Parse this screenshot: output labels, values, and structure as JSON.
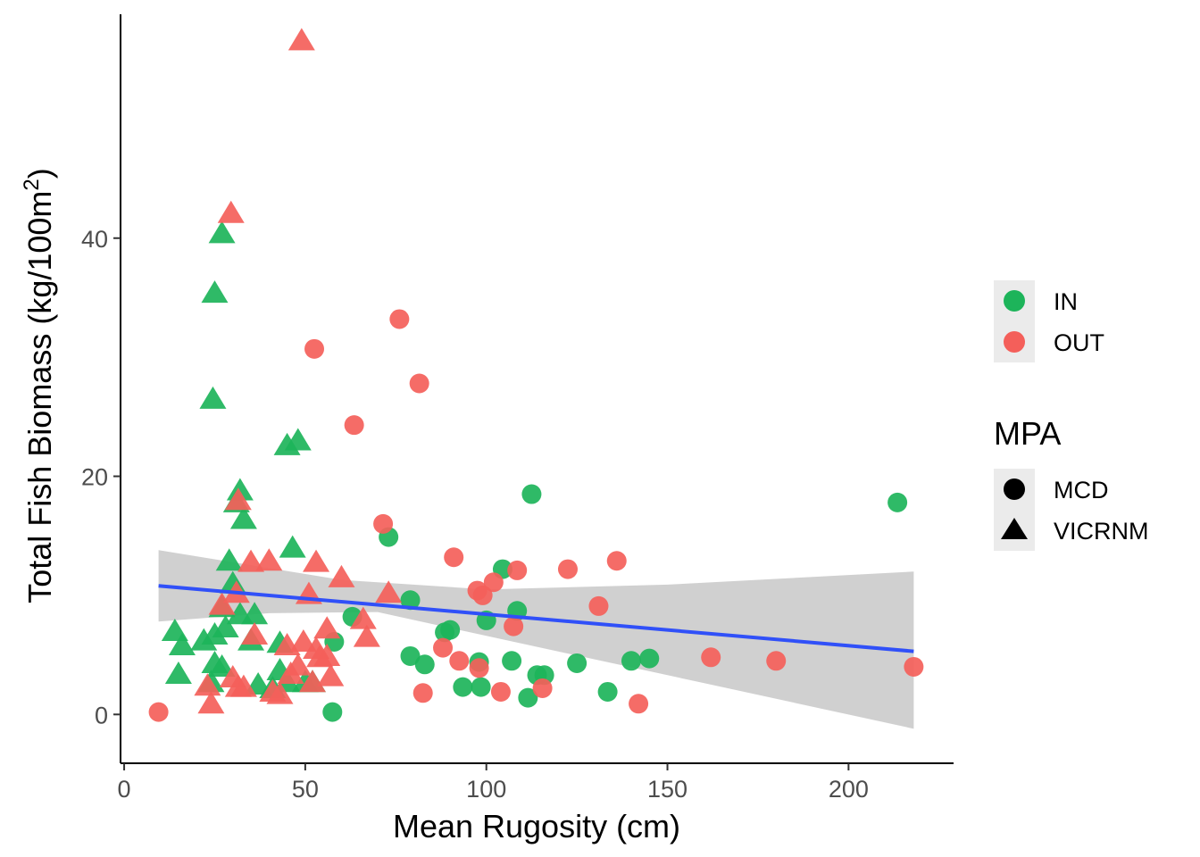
{
  "chart_data": {
    "type": "scatter",
    "xlabel": "Mean Rugosity (cm)",
    "ylabel_main": "Total Fish Biomass (kg/100m",
    "ylabel_sup": "2",
    "ylabel_end": ")",
    "xlim": [
      -1,
      229
    ],
    "ylim": [
      -4.1,
      58.8
    ],
    "x_ticks": [
      0,
      50,
      100,
      150,
      200
    ],
    "y_ticks": [
      0,
      20,
      40
    ],
    "grid": false,
    "colors": {
      "IN": "#1db45a",
      "OUT": "#f45f5a",
      "fit_line": "#3050f8",
      "ribbon": "#bebebe"
    },
    "legend_colour": {
      "placement": "right",
      "entries": [
        {
          "label": "IN",
          "key": "IN"
        },
        {
          "label": "OUT",
          "key": "OUT"
        }
      ]
    },
    "legend_shape": {
      "title": "MPA",
      "entries": [
        {
          "label": "MCD",
          "shape": "circle"
        },
        {
          "label": "VICRNM",
          "shape": "triangle"
        }
      ]
    },
    "trend": {
      "x": [
        9.5,
        218
      ],
      "y": [
        10.8,
        5.3
      ],
      "ribbon_upper": [
        [
          9.5,
          13.8
        ],
        [
          60,
          11.3
        ],
        [
          100,
          10.5
        ],
        [
          150,
          10.9
        ],
        [
          218,
          12.0
        ]
      ],
      "ribbon_lower": [
        [
          9.5,
          7.8
        ],
        [
          40,
          8.5
        ],
        [
          70,
          8.6
        ],
        [
          100,
          6.6
        ],
        [
          150,
          3.3
        ],
        [
          218,
          -1.2
        ]
      ]
    },
    "series": [
      {
        "name": "IN",
        "shape": "triangle",
        "points": [
          [
            27,
            40.4
          ],
          [
            25,
            35.4
          ],
          [
            24.5,
            26.5
          ],
          [
            45,
            22.6
          ],
          [
            48,
            23.0
          ],
          [
            32,
            18.8
          ],
          [
            31,
            17.8
          ],
          [
            33,
            16.4
          ],
          [
            46.5,
            14.0
          ],
          [
            29,
            12.9
          ],
          [
            30,
            11.0
          ],
          [
            27,
            9.0
          ],
          [
            32,
            8.4
          ],
          [
            36,
            8.4
          ],
          [
            28,
            7.3
          ],
          [
            25,
            6.7
          ],
          [
            14,
            7.0
          ],
          [
            16,
            5.8
          ],
          [
            22,
            6.2
          ],
          [
            35,
            6.2
          ],
          [
            43,
            6.0
          ],
          [
            25,
            4.3
          ],
          [
            27,
            4.0
          ],
          [
            15,
            3.4
          ],
          [
            24,
            2.7
          ],
          [
            37,
            2.5
          ],
          [
            41,
            2.2
          ],
          [
            43,
            3.7
          ],
          [
            45,
            2.7
          ],
          [
            50,
            2.7
          ],
          [
            52,
            2.7
          ]
        ]
      },
      {
        "name": "IN",
        "shape": "circle",
        "points": [
          [
            57.5,
            0.2
          ],
          [
            58,
            6.1
          ],
          [
            63,
            8.2
          ],
          [
            73,
            14.9
          ],
          [
            79,
            9.6
          ],
          [
            79,
            4.9
          ],
          [
            83,
            4.2
          ],
          [
            88.5,
            6.9
          ],
          [
            90,
            7.1
          ],
          [
            93.5,
            2.3
          ],
          [
            98,
            4.4
          ],
          [
            98.5,
            2.3
          ],
          [
            100,
            7.9
          ],
          [
            104.5,
            12.2
          ],
          [
            107,
            4.5
          ],
          [
            108.5,
            8.7
          ],
          [
            111.5,
            1.4
          ],
          [
            112.5,
            18.5
          ],
          [
            114,
            3.3
          ],
          [
            116,
            3.3
          ],
          [
            125,
            4.3
          ],
          [
            133.5,
            1.9
          ],
          [
            140,
            4.5
          ],
          [
            145,
            4.7
          ],
          [
            213.5,
            17.8
          ]
        ]
      },
      {
        "name": "OUT",
        "shape": "triangle",
        "points": [
          [
            49,
            56.6
          ],
          [
            29.5,
            42.1
          ],
          [
            31.5,
            18.0
          ],
          [
            35,
            12.8
          ],
          [
            40,
            12.9
          ],
          [
            53,
            12.8
          ],
          [
            60,
            11.5
          ],
          [
            51,
            10.1
          ],
          [
            73,
            10.2
          ],
          [
            31,
            10.2
          ],
          [
            27,
            9.2
          ],
          [
            66,
            8.0
          ],
          [
            67,
            6.5
          ],
          [
            56,
            7.2
          ],
          [
            36,
            6.7
          ],
          [
            45,
            5.8
          ],
          [
            49.5,
            6.1
          ],
          [
            53,
            5.5
          ],
          [
            54,
            4.8
          ],
          [
            56,
            4.9
          ],
          [
            48,
            4.1
          ],
          [
            46,
            3.4
          ],
          [
            57,
            3.2
          ],
          [
            52,
            2.7
          ],
          [
            23,
            2.4
          ],
          [
            30,
            3.1
          ],
          [
            33,
            2.3
          ],
          [
            31.5,
            2.3
          ],
          [
            41,
            1.9
          ],
          [
            43,
            1.7
          ],
          [
            24,
            0.9
          ]
        ]
      },
      {
        "name": "OUT",
        "shape": "circle",
        "points": [
          [
            9.5,
            0.2
          ],
          [
            52.5,
            30.7
          ],
          [
            63.5,
            24.3
          ],
          [
            71.5,
            16.0
          ],
          [
            76,
            33.2
          ],
          [
            81.5,
            27.8
          ],
          [
            88,
            5.6
          ],
          [
            91,
            13.2
          ],
          [
            92.5,
            4.5
          ],
          [
            97.5,
            10.4
          ],
          [
            99,
            10.0
          ],
          [
            98,
            3.9
          ],
          [
            102,
            11.1
          ],
          [
            104,
            1.9
          ],
          [
            107.5,
            7.4
          ],
          [
            108.5,
            12.1
          ],
          [
            115.5,
            2.2
          ],
          [
            122.5,
            12.2
          ],
          [
            131,
            9.1
          ],
          [
            136,
            12.9
          ],
          [
            142,
            0.9
          ],
          [
            162,
            4.8
          ],
          [
            180,
            4.5
          ],
          [
            218,
            4.0
          ],
          [
            82.5,
            1.8
          ]
        ]
      }
    ]
  }
}
